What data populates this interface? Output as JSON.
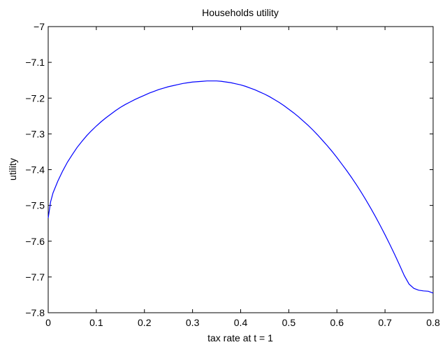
{
  "chart_data": {
    "type": "line",
    "title": "Households utility",
    "xlabel": "tax rate at t = 1",
    "ylabel": "utility",
    "xlim": [
      0,
      0.8
    ],
    "ylim": [
      -7.8,
      -7.0
    ],
    "xticks": [
      0,
      0.1,
      0.2,
      0.3,
      0.4,
      0.5,
      0.6,
      0.7,
      0.8
    ],
    "xtick_labels": [
      "0",
      "0.1",
      "0.2",
      "0.3",
      "0.4",
      "0.5",
      "0.6",
      "0.7",
      "0.8"
    ],
    "yticks": [
      -7.8,
      -7.7,
      -7.6,
      -7.5,
      -7.4,
      -7.3,
      -7.2,
      -7.1,
      -7.0
    ],
    "ytick_labels": [
      "−7.8",
      "−7.7",
      "−7.6",
      "−7.5",
      "−7.4",
      "−7.3",
      "−7.2",
      "−7.1",
      "−7"
    ],
    "grid": false,
    "line_color": "#0000ff",
    "series": [
      {
        "x": [
          0,
          0.005,
          0.01,
          0.02,
          0.03,
          0.04,
          0.05,
          0.06,
          0.07,
          0.08,
          0.09,
          0.1,
          0.11,
          0.12,
          0.13,
          0.14,
          0.15,
          0.16,
          0.17,
          0.18,
          0.19,
          0.2,
          0.21,
          0.22,
          0.23,
          0.24,
          0.25,
          0.26,
          0.27,
          0.28,
          0.29,
          0.3,
          0.31,
          0.32,
          0.33,
          0.34,
          0.35,
          0.36,
          0.37,
          0.38,
          0.39,
          0.4,
          0.41,
          0.42,
          0.43,
          0.44,
          0.45,
          0.46,
          0.47,
          0.48,
          0.49,
          0.5,
          0.51,
          0.52,
          0.53,
          0.54,
          0.55,
          0.56,
          0.57,
          0.58,
          0.59,
          0.6,
          0.61,
          0.62,
          0.63,
          0.64,
          0.65,
          0.66,
          0.67,
          0.68,
          0.69,
          0.7,
          0.71,
          0.72,
          0.73,
          0.74,
          0.75,
          0.76,
          0.77,
          0.78,
          0.79,
          0.8
        ],
        "y": [
          -7.535,
          -7.49,
          -7.465,
          -7.432,
          -7.404,
          -7.379,
          -7.358,
          -7.338,
          -7.321,
          -7.305,
          -7.291,
          -7.278,
          -7.266,
          -7.255,
          -7.245,
          -7.235,
          -7.226,
          -7.218,
          -7.211,
          -7.204,
          -7.198,
          -7.192,
          -7.186,
          -7.181,
          -7.176,
          -7.172,
          -7.168,
          -7.165,
          -7.162,
          -7.159,
          -7.157,
          -7.155,
          -7.154,
          -7.153,
          -7.152,
          -7.152,
          -7.152,
          -7.153,
          -7.155,
          -7.157,
          -7.16,
          -7.163,
          -7.167,
          -7.172,
          -7.177,
          -7.183,
          -7.189,
          -7.196,
          -7.204,
          -7.212,
          -7.221,
          -7.231,
          -7.241,
          -7.252,
          -7.264,
          -7.276,
          -7.289,
          -7.303,
          -7.318,
          -7.333,
          -7.349,
          -7.366,
          -7.384,
          -7.402,
          -7.421,
          -7.441,
          -7.462,
          -7.484,
          -7.507,
          -7.531,
          -7.556,
          -7.582,
          -7.609,
          -7.637,
          -7.666,
          -7.696,
          -7.72,
          -7.732,
          -7.737,
          -7.739,
          -7.74,
          -7.745
        ]
      }
    ]
  }
}
